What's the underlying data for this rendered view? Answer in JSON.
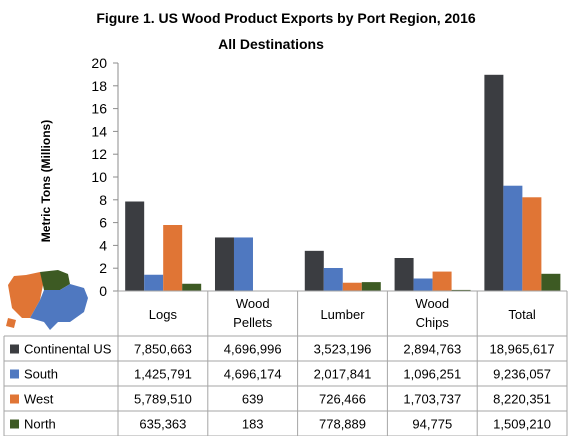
{
  "chart_data": {
    "type": "bar",
    "title": "Figure 1. US Wood Product Exports by Port Region, 2016",
    "subtitle": "All Destinations",
    "ylabel": "Metric Tons (Millions)",
    "xlabel": "",
    "ylim": [
      0,
      20
    ],
    "yticks": [
      0,
      2,
      4,
      6,
      8,
      10,
      12,
      14,
      16,
      18,
      20
    ],
    "grid": false,
    "categories": [
      [
        "Logs"
      ],
      [
        "Wood",
        "Pellets"
      ],
      [
        "Lumber"
      ],
      [
        "Wood",
        "Chips"
      ],
      [
        "Total"
      ]
    ],
    "series": [
      {
        "name": "Continental US",
        "color": "#3b3d41",
        "values": [
          7.850663,
          4.696996,
          3.523196,
          2.894763,
          18.965617
        ],
        "labels": [
          "7,850,663",
          "4,696,996",
          "3,523,196",
          "2,894,763",
          "18,965,617"
        ]
      },
      {
        "name": "South",
        "color": "#4f78c0",
        "values": [
          1.425791,
          4.696174,
          2.017841,
          1.096251,
          9.236057
        ],
        "labels": [
          "1,425,791",
          "4,696,174",
          "2,017,841",
          "1,096,251",
          "9,236,057"
        ]
      },
      {
        "name": "West",
        "color": "#e07535",
        "values": [
          5.78951,
          0.000639,
          0.726466,
          1.703737,
          8.220351
        ],
        "labels": [
          "5,789,510",
          "639",
          "726,466",
          "1,703,737",
          "8,220,351"
        ]
      },
      {
        "name": "North",
        "color": "#3d5a23",
        "values": [
          0.635363,
          0.000183,
          0.778889,
          0.094775,
          1.50921
        ],
        "labels": [
          "635,363",
          "183",
          "778,889",
          "94,775",
          "1,509,210"
        ]
      }
    ],
    "legend": "table-rows-below"
  },
  "map_icon": "us-regions-map-icon"
}
